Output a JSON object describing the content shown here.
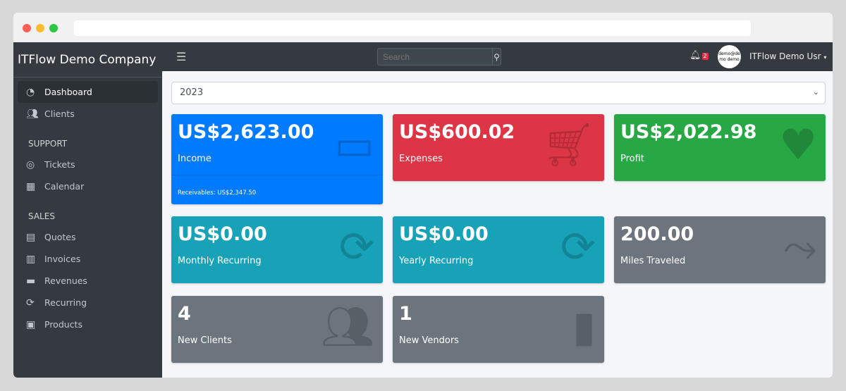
{
  "sidebar": {
    "brand": "ITFlow Demo Company",
    "items": [
      {
        "label": "Dashboard",
        "icon": "tachometer-icon"
      },
      {
        "label": "Clients",
        "icon": "users-icon"
      }
    ],
    "support_heading": "SUPPORT",
    "support": [
      {
        "label": "Tickets",
        "icon": "life-ring-icon"
      },
      {
        "label": "Calendar",
        "icon": "calendar-icon"
      }
    ],
    "sales_heading": "SALES",
    "sales": [
      {
        "label": "Quotes",
        "icon": "file-icon"
      },
      {
        "label": "Invoices",
        "icon": "invoice-icon"
      },
      {
        "label": "Revenues",
        "icon": "credit-card-icon"
      },
      {
        "label": "Recurring",
        "icon": "sync-icon"
      },
      {
        "label": "Products",
        "icon": "box-icon"
      }
    ]
  },
  "topbar": {
    "search_placeholder": "Search",
    "notifications": "2",
    "avatar_text": "demo@demo demo",
    "user": "ITFlow Demo Usr"
  },
  "year_select": "2023",
  "cards": [
    {
      "value": "US$2,623.00",
      "label": "Income",
      "footer": "Receivables: US$2,347.50",
      "color": "#007bff"
    },
    {
      "value": "US$600.02",
      "label": "Expenses",
      "color": "#dc3545"
    },
    {
      "value": "US$2,022.98",
      "label": "Profit",
      "color": "#28a745"
    },
    {
      "value": "US$0.00",
      "label": "Monthly Recurring",
      "color": "#17a2b8"
    },
    {
      "value": "US$0.00",
      "label": "Yearly Recurring",
      "color": "#17a2b8"
    },
    {
      "value": "200.00",
      "label": "Miles Traveled",
      "color": "#6c757d"
    },
    {
      "value": "4",
      "label": "New Clients",
      "color": "#6c757d"
    },
    {
      "value": "1",
      "label": "New Vendors",
      "color": "#6c757d"
    }
  ]
}
